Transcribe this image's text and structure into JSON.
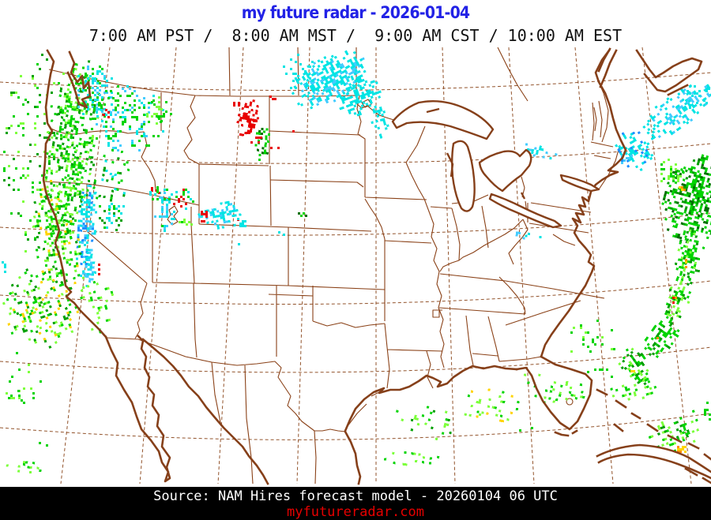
{
  "title": "my future radar - 2026-01-04",
  "subtitle": "7:00 AM PST /  8:00 AM MST /  9:00 AM CST / 10:00 AM EST",
  "footer": {
    "source": "Source: NAM Hires forecast model - 20260104 06 UTC",
    "site": "myfutureradar.com"
  },
  "colors": {
    "title_blue": "#2222e6",
    "site_red": "#e60000",
    "map_line_brown": "#8a4117",
    "footer_bg": "#000000"
  },
  "map": {
    "palette": {
      "G": "#00d400",
      "g": "#00a000",
      "d": "#007000",
      "L": "#7dff3c",
      "Y": "#ffd400",
      "O": "#ff9000",
      "R": "#e80000",
      "C": "#00e4e4",
      "c": "#44ccff",
      "B": "#2090ff"
    },
    "legend_semantics": {
      "G": "rain-light",
      "C": "snow",
      "B": "heavy-snow",
      "R": "ice",
      "Y": "rain-moderate",
      "O": "rain-heavy"
    },
    "echoes": [
      [
        52,
        200,
        54,
        135,
        0,
        0.1,
        "GLg"
      ],
      [
        88,
        185,
        34,
        120,
        8,
        0.4,
        "GGgL"
      ],
      [
        118,
        118,
        26,
        38,
        0,
        0.45,
        "CCcG"
      ],
      [
        160,
        150,
        48,
        45,
        0,
        0.28,
        "CcGG"
      ],
      [
        200,
        135,
        18,
        22,
        0,
        0.22,
        "GL"
      ],
      [
        140,
        225,
        26,
        42,
        10,
        0.26,
        "CGg"
      ],
      [
        108,
        290,
        13,
        62,
        3,
        0.55,
        "CCcB"
      ],
      [
        112,
        335,
        10,
        28,
        5,
        0.5,
        "Cc"
      ],
      [
        70,
        300,
        30,
        75,
        -8,
        0.36,
        "GGgLY"
      ],
      [
        50,
        390,
        48,
        52,
        -20,
        0.3,
        "GgLY"
      ],
      [
        120,
        385,
        25,
        40,
        -15,
        0.18,
        "GL"
      ],
      [
        30,
        478,
        25,
        38,
        0,
        0.07,
        "GL"
      ],
      [
        140,
        270,
        18,
        25,
        0,
        0.33,
        "GCg"
      ],
      [
        205,
        265,
        16,
        28,
        0,
        0.33,
        "CGc"
      ],
      [
        232,
        250,
        16,
        14,
        0,
        0.38,
        "GCR"
      ],
      [
        278,
        272,
        30,
        18,
        -10,
        0.5,
        "CCc"
      ],
      [
        255,
        272,
        10,
        8,
        0,
        0.5,
        "R"
      ],
      [
        300,
        276,
        6,
        5,
        0,
        0.55,
        "R"
      ],
      [
        135,
        142,
        8,
        7,
        0,
        0.5,
        "R"
      ],
      [
        196,
        240,
        8,
        6,
        0,
        0.4,
        "R"
      ],
      [
        124,
        338,
        3,
        10,
        0,
        0.7,
        "R"
      ],
      [
        312,
        148,
        14,
        26,
        10,
        0.5,
        "R"
      ],
      [
        330,
        180,
        10,
        24,
        5,
        0.55,
        "GGd"
      ],
      [
        322,
        166,
        14,
        20,
        0,
        0.28,
        "R"
      ],
      [
        302,
        128,
        10,
        8,
        0,
        0.33,
        "R"
      ],
      [
        344,
        190,
        8,
        10,
        0,
        0.3,
        "R"
      ],
      [
        368,
        163,
        4,
        4,
        0,
        0.55,
        "R"
      ],
      [
        343,
        122,
        5,
        4,
        0,
        0.5,
        "R"
      ],
      [
        415,
        100,
        52,
        30,
        -28,
        0.78,
        "CCCc"
      ],
      [
        452,
        120,
        30,
        25,
        -20,
        0.5,
        "C"
      ],
      [
        477,
        148,
        12,
        26,
        -15,
        0.45,
        "C"
      ],
      [
        380,
        90,
        25,
        25,
        0,
        0.13,
        "C"
      ],
      [
        305,
        280,
        8,
        7,
        0,
        0.4,
        "C"
      ],
      [
        355,
        292,
        12,
        5,
        0,
        0.4,
        "C"
      ],
      [
        382,
        270,
        8,
        4,
        0,
        0.6,
        "Gd"
      ],
      [
        660,
        295,
        28,
        7,
        5,
        0.16,
        "Cc"
      ],
      [
        680,
        190,
        25,
        9,
        10,
        0.38,
        "Cc"
      ],
      [
        855,
        140,
        55,
        22,
        -35,
        0.5,
        "CCc"
      ],
      [
        800,
        190,
        22,
        28,
        -30,
        0.55,
        "CCB"
      ],
      [
        880,
        120,
        20,
        18,
        0,
        0.22,
        "C"
      ],
      [
        793,
        200,
        10,
        10,
        0,
        0.5,
        "Bc"
      ],
      [
        880,
        250,
        42,
        58,
        15,
        0.68,
        "GGgd"
      ],
      [
        848,
        215,
        18,
        20,
        0,
        0.38,
        "GL"
      ],
      [
        862,
        235,
        6,
        5,
        0,
        0.4,
        "YO"
      ],
      [
        872,
        322,
        18,
        34,
        12,
        0.55,
        "GGgL"
      ],
      [
        858,
        375,
        16,
        32,
        22,
        0.55,
        "GgL"
      ],
      [
        838,
        425,
        18,
        30,
        35,
        0.5,
        "GGg"
      ],
      [
        805,
        462,
        26,
        18,
        55,
        0.5,
        "GgL"
      ],
      [
        868,
        330,
        4,
        8,
        0,
        0.6,
        "YO"
      ],
      [
        852,
        380,
        4,
        7,
        0,
        0.5,
        "YOR"
      ],
      [
        832,
        430,
        4,
        6,
        0,
        0.5,
        "YO"
      ],
      [
        800,
        465,
        5,
        5,
        0,
        0.5,
        "YO"
      ],
      [
        745,
        430,
        35,
        28,
        0,
        0.11,
        "GL"
      ],
      [
        700,
        490,
        45,
        22,
        10,
        0.14,
        "GL"
      ],
      [
        763,
        470,
        20,
        15,
        0,
        0.11,
        "G"
      ],
      [
        545,
        532,
        48,
        22,
        15,
        0.12,
        "GLg"
      ],
      [
        620,
        515,
        42,
        25,
        10,
        0.14,
        "GLY"
      ],
      [
        520,
        578,
        42,
        14,
        8,
        0.12,
        "GL"
      ],
      [
        660,
        545,
        15,
        10,
        0,
        0.1,
        "G"
      ],
      [
        800,
        495,
        35,
        16,
        -15,
        0.2,
        "GL"
      ],
      [
        855,
        545,
        38,
        25,
        -20,
        0.28,
        "GLg"
      ],
      [
        862,
        568,
        8,
        6,
        0,
        0.5,
        "OY"
      ],
      [
        895,
        520,
        10,
        14,
        0,
        0.3,
        "G"
      ],
      [
        28,
        588,
        26,
        10,
        5,
        0.22,
        "GL"
      ],
      [
        18,
        498,
        14,
        7,
        0,
        0.28,
        "GL"
      ],
      [
        55,
        560,
        12,
        6,
        0,
        0.18,
        "G"
      ],
      [
        205,
        243,
        22,
        10,
        0,
        0.33,
        "GC"
      ],
      [
        232,
        278,
        12,
        10,
        0,
        0.33,
        "GL"
      ],
      [
        5,
        335,
        6,
        10,
        0,
        0.4,
        "C"
      ],
      [
        302,
        307,
        4,
        5,
        0,
        0.5,
        "C"
      ]
    ]
  }
}
